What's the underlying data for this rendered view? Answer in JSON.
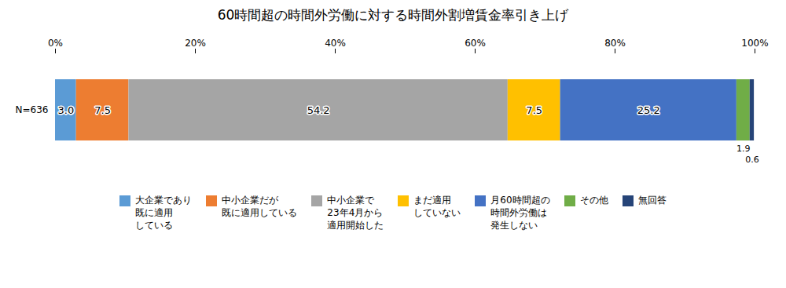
{
  "chart_data": {
    "type": "bar",
    "title": "60時間超の時間外労働に対する時間外割増賃金率引き上げ",
    "orientation": "horizontal",
    "stacked": true,
    "data_labels": true,
    "grid": true,
    "legend": "bottom",
    "categories": [
      "N=636"
    ],
    "series": [
      {
        "name": "大企業であり\n既に適用\nしている",
        "color": "#5B9BD5",
        "values": [
          3.0
        ],
        "value_labels": [
          "3.0"
        ]
      },
      {
        "name": "中小企業だが\n既に適用している",
        "color": "#ED7D31",
        "values": [
          7.5
        ],
        "value_labels": [
          "7.5"
        ]
      },
      {
        "name": "中小企業で\n23年4月から\n適用開始した",
        "color": "#A5A5A5",
        "values": [
          54.2
        ],
        "value_labels": [
          "54.2"
        ]
      },
      {
        "name": "まだ適用\nしていない",
        "color": "#FFC000",
        "values": [
          7.5
        ],
        "value_labels": [
          "7.5"
        ]
      },
      {
        "name": "月60時間超の\n時間外労働は\n発生しない",
        "color": "#4472C4",
        "values": [
          25.2
        ],
        "value_labels": [
          "25.2"
        ]
      },
      {
        "name": "その他",
        "color": "#70AD47",
        "values": [
          1.9
        ],
        "value_labels": [
          "1.9"
        ]
      },
      {
        "name": "無回答",
        "color": "#264478",
        "values": [
          0.6
        ],
        "value_labels": [
          "0.6"
        ]
      }
    ],
    "xlim": [
      0,
      100
    ],
    "xticks": [
      {
        "value": 0,
        "label": "0%"
      },
      {
        "value": 20,
        "label": "20%"
      },
      {
        "value": 40,
        "label": "40%"
      },
      {
        "value": 60,
        "label": "60%"
      },
      {
        "value": 80,
        "label": "80%"
      },
      {
        "value": 100,
        "label": "100%"
      }
    ]
  }
}
